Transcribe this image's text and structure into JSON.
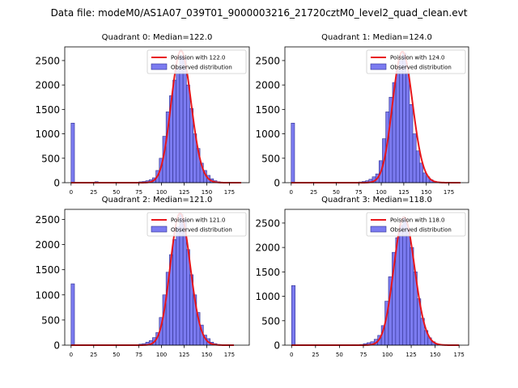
{
  "suptitle": "Data file: modeM0/AS1A07_039T01_9000003216_21720cztM0_level2_quad_clean.evt",
  "colors": {
    "bar_fill": "#7b7bf0",
    "bar_edge": "#2f2f8f",
    "curve": "#e8161b"
  },
  "chart_data": [
    {
      "type": "bar+line",
      "title": "Quadrant 0: Median=122.0",
      "median": 122,
      "xlim": [
        -7,
        197
      ],
      "ylim": [
        0,
        2780
      ],
      "xticks": [
        0,
        25,
        50,
        75,
        100,
        125,
        150,
        175
      ],
      "yticks": [
        0,
        500,
        1000,
        1500,
        2000,
        2500
      ],
      "legend": {
        "position": "top-right",
        "entries": [
          "Poission with 122.0",
          "Observed distribution"
        ]
      },
      "series": [
        {
          "name": "Observed distribution",
          "kind": "histogram",
          "bin_width": 3.75,
          "bars": [
            [
              0,
              1220
            ],
            [
              26.25,
              20
            ],
            [
              63.75,
              8
            ],
            [
              71.25,
              10
            ],
            [
              75,
              18
            ],
            [
              78.75,
              25
            ],
            [
              82.5,
              40
            ],
            [
              86.25,
              60
            ],
            [
              90,
              100
            ],
            [
              93.75,
              250
            ],
            [
              97.5,
              500
            ],
            [
              101.25,
              950
            ],
            [
              105,
              1450
            ],
            [
              108.75,
              1780
            ],
            [
              112.5,
              2100
            ],
            [
              116.25,
              2350
            ],
            [
              120,
              2600
            ],
            [
              123.75,
              2550
            ],
            [
              127.5,
              2000
            ],
            [
              131.25,
              1520
            ],
            [
              135,
              1000
            ],
            [
              138.75,
              700
            ],
            [
              142.5,
              400
            ],
            [
              146.25,
              250
            ],
            [
              150,
              150
            ],
            [
              153.75,
              80
            ],
            [
              157.5,
              40
            ],
            [
              161.25,
              20
            ]
          ]
        },
        {
          "name": "Poission with 122.0",
          "kind": "poisson_curve",
          "lambda": 122,
          "scale": 2700,
          "x_range": [
            0,
            188
          ]
        }
      ]
    },
    {
      "type": "bar+line",
      "title": "Quadrant 1: Median=124.0",
      "median": 124,
      "xlim": [
        -7,
        197
      ],
      "ylim": [
        0,
        2780
      ],
      "xticks": [
        0,
        25,
        50,
        75,
        100,
        125,
        150,
        175
      ],
      "yticks": [
        0,
        500,
        1000,
        1500,
        2000,
        2500
      ],
      "legend": {
        "position": "top-right",
        "entries": [
          "Poission with 124.0",
          "Observed distribution"
        ]
      },
      "series": [
        {
          "name": "Observed distribution",
          "kind": "histogram",
          "bin_width": 3.75,
          "bars": [
            [
              0,
              1220
            ],
            [
              63.75,
              8
            ],
            [
              71.25,
              10
            ],
            [
              75,
              15
            ],
            [
              78.75,
              25
            ],
            [
              82.5,
              40
            ],
            [
              86.25,
              70
            ],
            [
              90,
              120
            ],
            [
              93.75,
              180
            ],
            [
              97.5,
              450
            ],
            [
              101.25,
              900
            ],
            [
              105,
              1450
            ],
            [
              108.75,
              1750
            ],
            [
              112.5,
              2050
            ],
            [
              116.25,
              2300
            ],
            [
              120,
              2500
            ],
            [
              123.75,
              2650
            ],
            [
              127.5,
              2250
            ],
            [
              131.25,
              1600
            ],
            [
              135,
              1000
            ],
            [
              138.75,
              650
            ],
            [
              142.5,
              400
            ],
            [
              146.25,
              200
            ],
            [
              150,
              120
            ],
            [
              153.75,
              60
            ],
            [
              157.5,
              30
            ],
            [
              161.25,
              15
            ]
          ]
        },
        {
          "name": "Poission with 124.0",
          "kind": "poisson_curve",
          "lambda": 124,
          "scale": 2680,
          "x_range": [
            0,
            188
          ]
        }
      ]
    },
    {
      "type": "bar+line",
      "title": "Quadrant 2: Median=121.0",
      "median": 121,
      "xlim": [
        -7,
        197
      ],
      "ylim": [
        0,
        2700
      ],
      "xticks": [
        0,
        25,
        50,
        75,
        100,
        125,
        150,
        175
      ],
      "yticks": [
        0,
        500,
        1000,
        1500,
        2000,
        2500
      ],
      "legend": {
        "position": "top-right",
        "entries": [
          "Poission with 121.0",
          "Observed distribution"
        ]
      },
      "series": [
        {
          "name": "Observed distribution",
          "kind": "histogram",
          "bin_width": 3.75,
          "bars": [
            [
              0,
              1220
            ],
            [
              63.75,
              8
            ],
            [
              71.25,
              10
            ],
            [
              75,
              20
            ],
            [
              78.75,
              30
            ],
            [
              82.5,
              60
            ],
            [
              86.25,
              90
            ],
            [
              90,
              150
            ],
            [
              93.75,
              250
            ],
            [
              97.5,
              550
            ],
            [
              101.25,
              1000
            ],
            [
              105,
              1450
            ],
            [
              108.75,
              1800
            ],
            [
              112.5,
              2100
            ],
            [
              116.25,
              2350
            ],
            [
              120,
              2600
            ],
            [
              123.75,
              2500
            ],
            [
              127.5,
              1900
            ],
            [
              131.25,
              1400
            ],
            [
              135,
              1000
            ],
            [
              138.75,
              650
            ],
            [
              142.5,
              400
            ],
            [
              146.25,
              200
            ],
            [
              150,
              130
            ],
            [
              153.75,
              60
            ],
            [
              157.5,
              30
            ],
            [
              161.25,
              15
            ]
          ]
        },
        {
          "name": "Poission with 121.0",
          "kind": "poisson_curve",
          "lambda": 121,
          "scale": 2620,
          "x_range": [
            0,
            180
          ]
        }
      ]
    },
    {
      "type": "bar+line",
      "title": "Quadrant 3: Median=118.0",
      "median": 118,
      "xlim": [
        -7,
        185
      ],
      "ylim": [
        0,
        2780
      ],
      "xticks": [
        0,
        25,
        50,
        75,
        100,
        125,
        150,
        175
      ],
      "yticks": [
        0,
        500,
        1000,
        1500,
        2000,
        2500
      ],
      "legend": {
        "position": "top-right",
        "entries": [
          "Poission with 118.0",
          "Observed distribution"
        ]
      },
      "series": [
        {
          "name": "Observed distribution",
          "kind": "histogram",
          "bin_width": 3.75,
          "bars": [
            [
              0,
              1220
            ],
            [
              48.75,
              10
            ],
            [
              56.25,
              8
            ],
            [
              63.75,
              12
            ],
            [
              71.25,
              15
            ],
            [
              75,
              30
            ],
            [
              78.75,
              50
            ],
            [
              82.5,
              70
            ],
            [
              86.25,
              120
            ],
            [
              90,
              200
            ],
            [
              93.75,
              400
            ],
            [
              97.5,
              900
            ],
            [
              101.25,
              1400
            ],
            [
              105,
              1900
            ],
            [
              108.75,
              2200
            ],
            [
              112.5,
              2450
            ],
            [
              116.25,
              2600
            ],
            [
              120,
              2400
            ],
            [
              123.75,
              2000
            ],
            [
              127.5,
              1500
            ],
            [
              131.25,
              950
            ],
            [
              135,
              550
            ],
            [
              138.75,
              300
            ],
            [
              142.5,
              150
            ],
            [
              146.25,
              70
            ],
            [
              150,
              30
            ]
          ]
        },
        {
          "name": "Poission with 118.0",
          "kind": "poisson_curve",
          "lambda": 118,
          "scale": 2620,
          "x_range": [
            0,
            175
          ]
        }
      ]
    }
  ]
}
